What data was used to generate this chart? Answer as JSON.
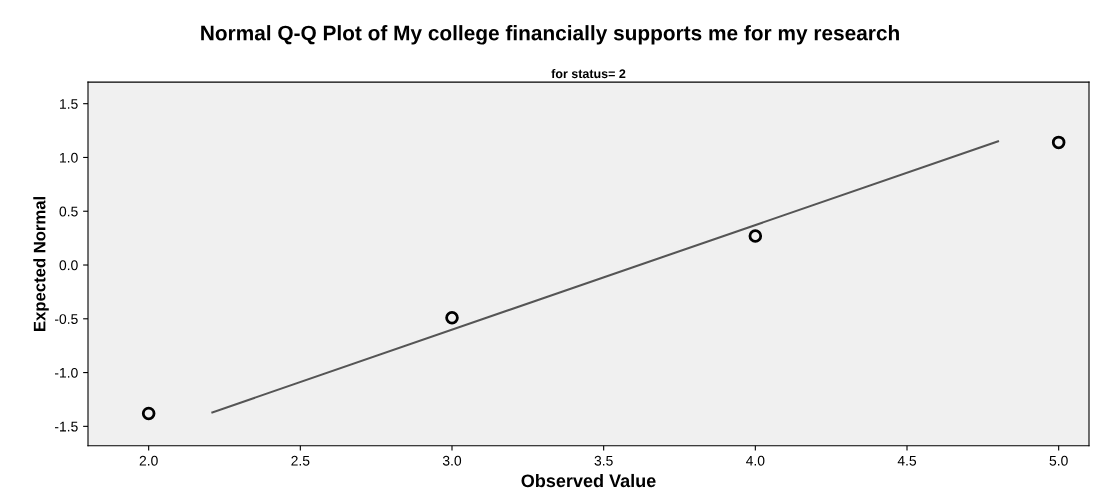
{
  "chart_data": {
    "type": "scatter",
    "title": "Normal Q-Q Plot of My college financially supports me for my research",
    "subtitle": "for status= 2",
    "xlabel": "Observed Value",
    "ylabel": "Expected Normal",
    "series": [
      {
        "color": "#000000",
        "x": [
          2.0,
          3.0,
          4.0,
          5.0
        ],
        "values": [
          -1.38,
          -0.49,
          0.27,
          1.14
        ],
        "marker": "circle"
      },
      {
        "type": "line",
        "color": "#555555",
        "x": [
          2.21,
          4.8
        ],
        "values": [
          -1.37,
          1.15
        ],
        "marker": "none",
        "line_style": "solid"
      }
    ],
    "xlim": [
      1.8,
      5.1
    ],
    "xticks": [
      {
        "value": 2.0,
        "label": "2.0"
      },
      2.5,
      {
        "value": 3.0,
        "label": "3.0"
      },
      3.5,
      {
        "value": 4.0,
        "label": "4.0"
      },
      4.5,
      {
        "value": 5.0,
        "label": "5.0"
      }
    ],
    "ylim": [
      -1.68,
      1.7
    ],
    "yticks": [
      -1.5,
      {
        "value": -1.0,
        "label": "-1.0"
      },
      -0.5,
      {
        "value": 0.0,
        "label": "0.0"
      },
      0.5,
      {
        "value": 1.0,
        "label": "1.0"
      },
      1.5
    ],
    "grid": false,
    "legend": false
  }
}
